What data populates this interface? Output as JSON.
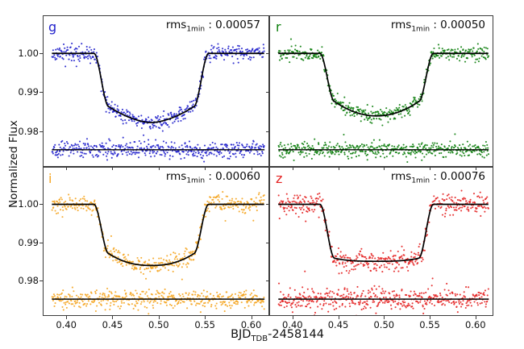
{
  "chart_data": {
    "type": "scatter",
    "description": "Four-panel transit light curves (g, r, i, z bands) with best-fit transit models and residuals offset below",
    "ylabel": "Normalized Flux",
    "xlabel": {
      "main": "BJD",
      "sub": "TDB",
      "suffix": "-2458144"
    },
    "rms_label": {
      "prefix": "rms",
      "sub": "1min",
      "sep": " : "
    },
    "axes": {
      "xlim": [
        0.3746,
        0.6196
      ],
      "ylim": [
        0.9708,
        1.0098
      ],
      "xticks": {
        "values": [
          0.4,
          0.45,
          0.5,
          0.55,
          0.6
        ],
        "labels": [
          "0.40",
          "0.45",
          "0.50",
          "0.55",
          "0.60"
        ]
      },
      "yticks": {
        "values": [
          1.0,
          0.99,
          0.98
        ],
        "labels": [
          "1.00",
          "0.99",
          "0.98"
        ]
      },
      "data_xrange": [
        0.3845,
        0.6145
      ],
      "grid": false
    },
    "transit": {
      "t1": 0.43,
      "t2": 0.446,
      "t3": 0.538,
      "t4": 0.554,
      "baseline": 1.0
    },
    "residual_offset": 0.9752,
    "panels": [
      {
        "band": "g",
        "color": "#2222cc",
        "rms": "0.00057",
        "shoulder": 0.9863,
        "center": 0.9822,
        "power": 1.7,
        "sigma": 0.001,
        "n_points": 460,
        "seed": 11
      },
      {
        "band": "r",
        "color": "#0e800e",
        "rms": "0.00050",
        "shoulder": 0.9876,
        "center": 0.9839,
        "power": 2.0,
        "sigma": 0.0009,
        "n_points": 460,
        "seed": 22
      },
      {
        "band": "i",
        "color": "#f5a623",
        "rms": "0.00060",
        "shoulder": 0.9871,
        "center": 0.984,
        "power": 2.3,
        "sigma": 0.0011,
        "n_points": 460,
        "seed": 33
      },
      {
        "band": "z",
        "color": "#e42222",
        "rms": "0.00076",
        "shoulder": 0.9859,
        "center": 0.9851,
        "power": 3.0,
        "sigma": 0.0014,
        "n_points": 460,
        "seed": 44
      }
    ]
  }
}
